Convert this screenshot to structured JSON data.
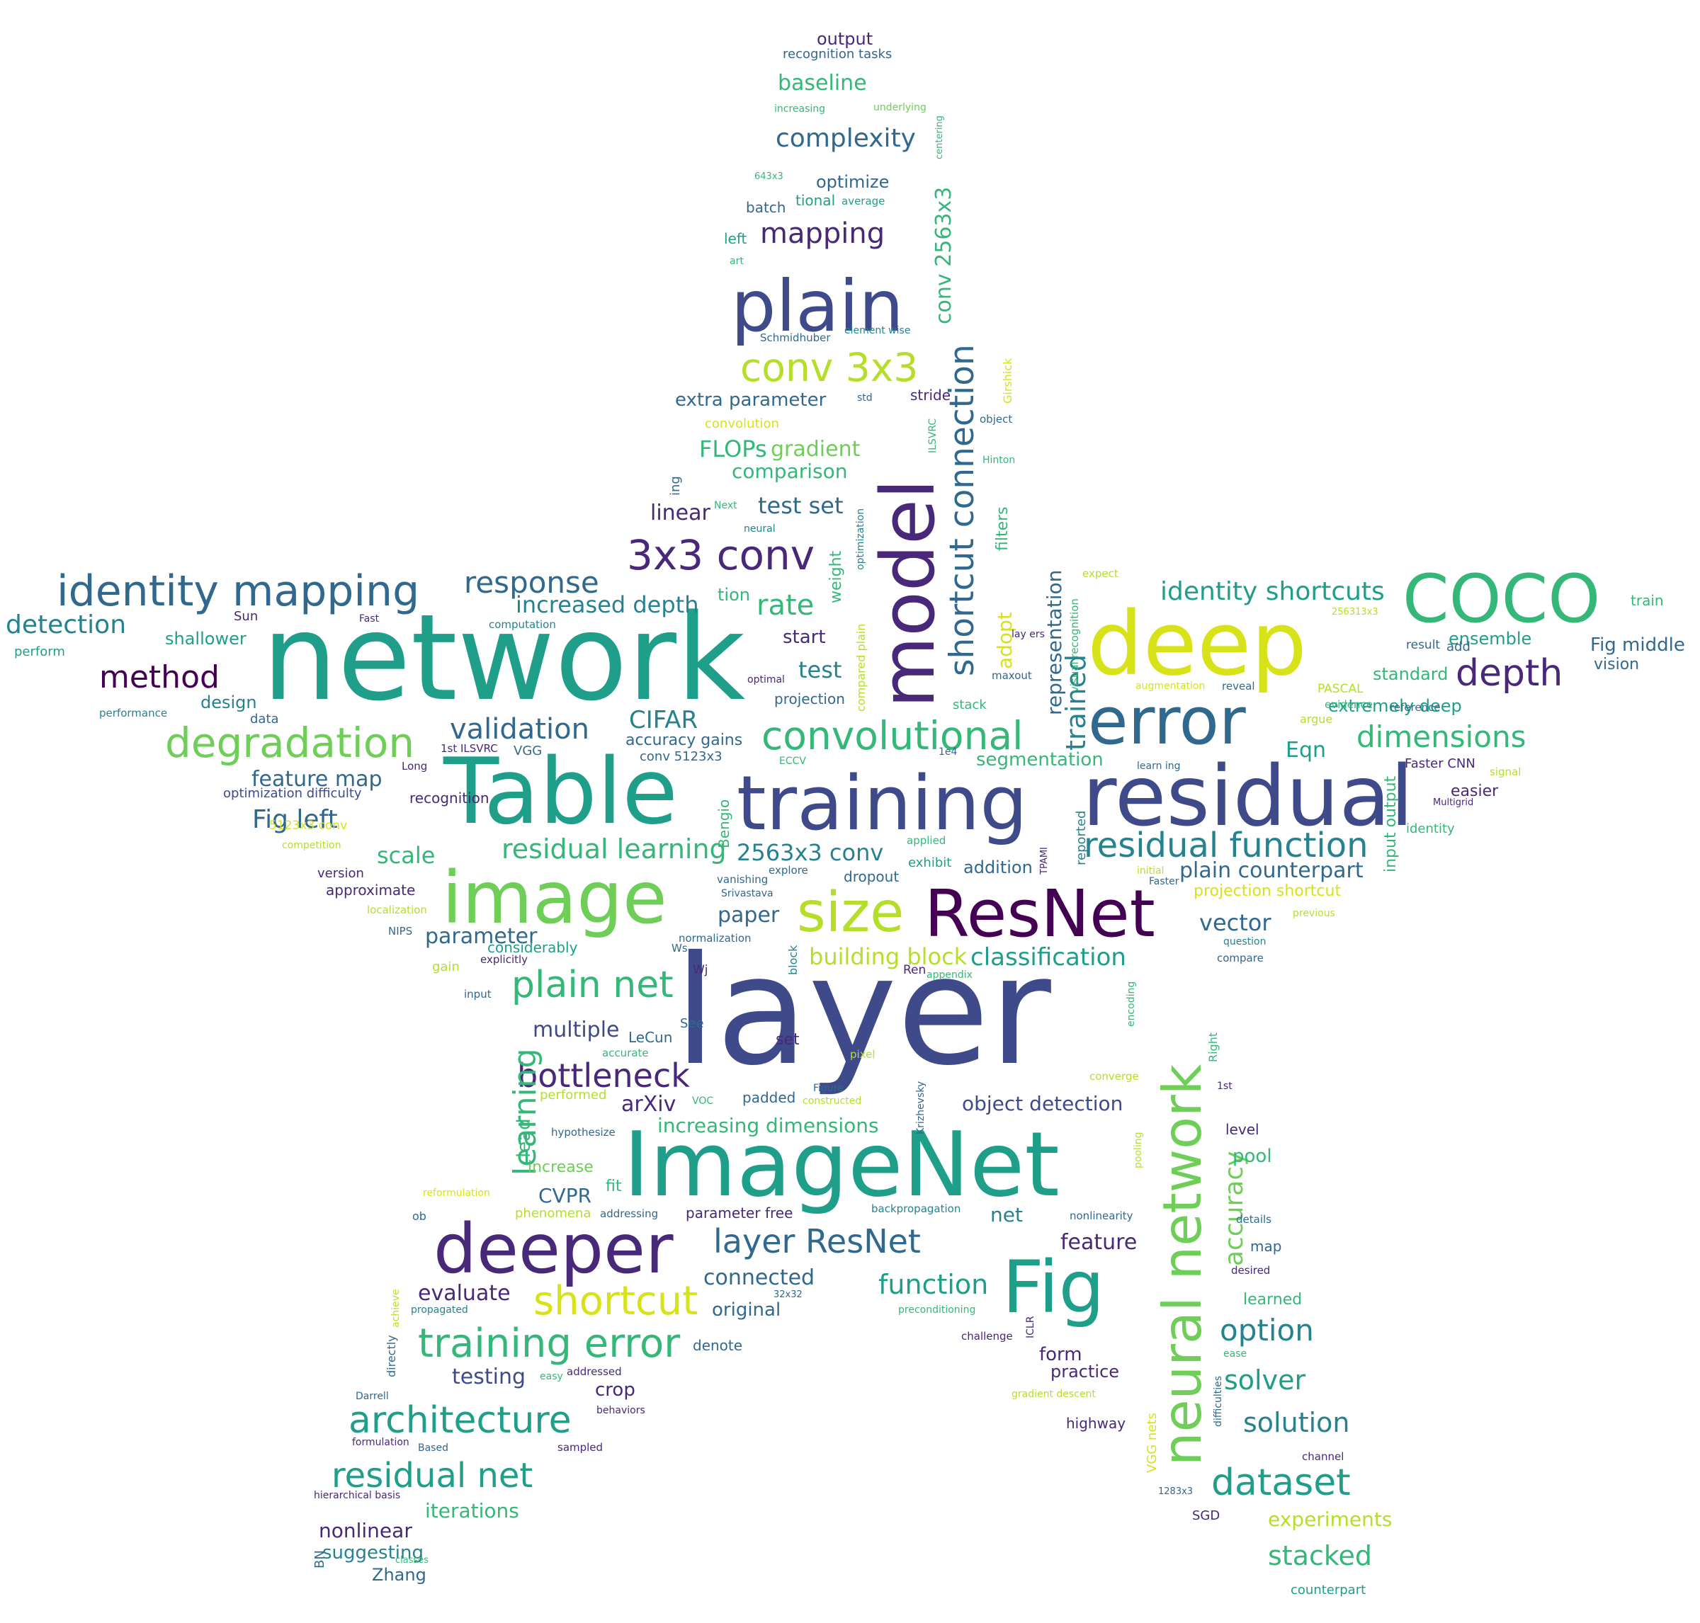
{
  "palette": {
    "purple": "#440154",
    "indigo": "#482878",
    "blue": "#3e4a89",
    "slate": "#31688e",
    "teal": "#26828e",
    "green": "#1f9e89",
    "mint": "#35b779",
    "lime": "#6ece58",
    "yellowgreen": "#b5de2b",
    "yellow": "#d8e219"
  },
  "words": [
    {
      "text": "layer",
      "color": "blue"
    },
    {
      "text": "network",
      "color": "green"
    },
    {
      "text": "ImageNet",
      "color": "green"
    },
    {
      "text": "Table",
      "color": "green"
    },
    {
      "text": "training",
      "color": "blue"
    },
    {
      "text": "deep",
      "color": "yellow"
    },
    {
      "text": "model",
      "color": "indigo"
    },
    {
      "text": "residual",
      "color": "blue"
    },
    {
      "text": "error",
      "color": "slate"
    },
    {
      "text": "image",
      "color": "lime"
    },
    {
      "text": "ResNet",
      "color": "purple"
    },
    {
      "text": "plain",
      "color": "blue"
    },
    {
      "text": "COCO",
      "color": "mint"
    },
    {
      "text": "Fig",
      "color": "green"
    },
    {
      "text": "deeper",
      "color": "indigo"
    },
    {
      "text": "neural network",
      "color": "lime"
    },
    {
      "text": "size",
      "color": "yellowgreen"
    },
    {
      "text": "shortcut connection",
      "color": "slate"
    },
    {
      "text": "3x3 conv",
      "color": "indigo"
    },
    {
      "text": "identity mapping",
      "color": "slate"
    },
    {
      "text": "convolutional",
      "color": "mint"
    },
    {
      "text": "degradation",
      "color": "lime"
    },
    {
      "text": "conv 3x3",
      "color": "yellowgreen"
    },
    {
      "text": "shortcut",
      "color": "yellow"
    },
    {
      "text": "training error",
      "color": "mint"
    },
    {
      "text": "residual function",
      "color": "teal"
    },
    {
      "text": "architecture",
      "color": "green"
    },
    {
      "text": "dataset",
      "color": "green"
    },
    {
      "text": "plain net",
      "color": "mint"
    },
    {
      "text": "bottleneck",
      "color": "indigo"
    },
    {
      "text": "residual net",
      "color": "green"
    },
    {
      "text": "layer ResNet",
      "color": "slate"
    },
    {
      "text": "depth",
      "color": "indigo"
    },
    {
      "text": "method",
      "color": "purple"
    },
    {
      "text": "detection",
      "color": "teal"
    },
    {
      "text": "response",
      "color": "slate"
    },
    {
      "text": "mapping",
      "color": "indigo"
    },
    {
      "text": "complexity",
      "color": "slate"
    },
    {
      "text": "dimensions",
      "color": "mint"
    },
    {
      "text": "identity shortcuts",
      "color": "green"
    },
    {
      "text": "residual learning",
      "color": "mint"
    },
    {
      "text": "validation",
      "color": "slate"
    },
    {
      "text": "learning",
      "color": "mint"
    },
    {
      "text": "function",
      "color": "green"
    },
    {
      "text": "option",
      "color": "teal"
    },
    {
      "text": "solution",
      "color": "teal"
    },
    {
      "text": "solver",
      "color": "green"
    },
    {
      "text": "stacked",
      "color": "mint"
    },
    {
      "text": "increased depth",
      "color": "teal"
    },
    {
      "text": "2563x3 conv",
      "color": "teal"
    },
    {
      "text": "conv 2563x3",
      "color": "mint"
    },
    {
      "text": "plain counterpart",
      "color": "slate"
    },
    {
      "text": "representation",
      "color": "slate"
    },
    {
      "text": "feature map",
      "color": "slate"
    },
    {
      "text": "Fig left",
      "color": "slate"
    },
    {
      "text": "CIFAR",
      "color": "teal"
    },
    {
      "text": "test set",
      "color": "slate"
    },
    {
      "text": "rate",
      "color": "mint"
    },
    {
      "text": "trained",
      "color": "teal"
    },
    {
      "text": "accuracy",
      "color": "lime"
    },
    {
      "text": "FLOPs",
      "color": "mint"
    },
    {
      "text": "gradient",
      "color": "lime"
    },
    {
      "text": "comparison",
      "color": "mint"
    },
    {
      "text": "connected",
      "color": "slate"
    },
    {
      "text": "evaluate",
      "color": "indigo"
    },
    {
      "text": "classification",
      "color": "green"
    },
    {
      "text": "building block",
      "color": "yellowgreen"
    },
    {
      "text": "object detection",
      "color": "blue"
    },
    {
      "text": "increasing dimensions",
      "color": "mint"
    },
    {
      "text": "multiple",
      "color": "blue"
    },
    {
      "text": "paper",
      "color": "slate"
    },
    {
      "text": "parameter",
      "color": "slate"
    },
    {
      "text": "vector",
      "color": "slate"
    },
    {
      "text": "feature",
      "color": "indigo"
    },
    {
      "text": "scale",
      "color": "mint"
    },
    {
      "text": "linear",
      "color": "indigo"
    },
    {
      "text": "test",
      "color": "teal"
    },
    {
      "text": "baseline",
      "color": "mint"
    },
    {
      "text": "output",
      "color": "indigo"
    },
    {
      "text": "extra parameter",
      "color": "slate"
    },
    {
      "text": "optimize",
      "color": "slate"
    },
    {
      "text": "Eqn",
      "color": "green"
    },
    {
      "text": "CVPR",
      "color": "slate"
    },
    {
      "text": "testing",
      "color": "blue"
    },
    {
      "text": "iterations",
      "color": "mint"
    },
    {
      "text": "nonlinear",
      "color": "indigo"
    },
    {
      "text": "suggesting",
      "color": "teal"
    },
    {
      "text": "Zhang",
      "color": "slate"
    },
    {
      "text": "form",
      "color": "indigo"
    },
    {
      "text": "practice",
      "color": "indigo"
    },
    {
      "text": "experiments",
      "color": "yellowgreen"
    },
    {
      "text": "pool",
      "color": "mint"
    },
    {
      "text": "crop",
      "color": "indigo"
    },
    {
      "text": "original",
      "color": "slate"
    },
    {
      "text": "net",
      "color": "teal"
    },
    {
      "text": "addition",
      "color": "slate"
    },
    {
      "text": "segmentation",
      "color": "mint"
    },
    {
      "text": "extremely deep",
      "color": "green"
    },
    {
      "text": "Fig middle",
      "color": "slate"
    },
    {
      "text": "standard",
      "color": "mint"
    },
    {
      "text": "ensemble",
      "color": "green"
    },
    {
      "text": "train",
      "color": "mint"
    },
    {
      "text": "vision",
      "color": "slate"
    },
    {
      "text": "input output",
      "color": "mint"
    },
    {
      "text": "easier",
      "color": "indigo"
    },
    {
      "text": "design",
      "color": "teal"
    },
    {
      "text": "shallower",
      "color": "green"
    },
    {
      "text": "accuracy gains",
      "color": "slate"
    },
    {
      "text": "projection shortcut",
      "color": "yellow"
    },
    {
      "text": "arXiv",
      "color": "indigo"
    },
    {
      "text": "start",
      "color": "indigo"
    },
    {
      "text": "adopt",
      "color": "yellow"
    },
    {
      "text": "filters",
      "color": "mint"
    },
    {
      "text": "learned",
      "color": "mint"
    },
    {
      "text": "Bengio",
      "color": "mint"
    },
    {
      "text": "lead",
      "color": "mint"
    },
    {
      "text": "fit",
      "color": "mint"
    },
    {
      "text": "weight",
      "color": "mint"
    },
    {
      "text": "increase",
      "color": "lime"
    },
    {
      "text": "tion",
      "color": "mint"
    },
    {
      "text": "dropout",
      "color": "slate"
    },
    {
      "text": "set",
      "color": "indigo"
    },
    {
      "text": "level",
      "color": "indigo"
    },
    {
      "text": "map",
      "color": "slate"
    },
    {
      "text": "left",
      "color": "green"
    },
    {
      "text": "batch",
      "color": "slate"
    },
    {
      "text": "tional",
      "color": "green"
    },
    {
      "text": "projection",
      "color": "slate"
    },
    {
      "text": "recognition",
      "color": "indigo"
    },
    {
      "text": "approximate",
      "color": "indigo"
    },
    {
      "text": "version",
      "color": "indigo"
    },
    {
      "text": "parameter free",
      "color": "indigo"
    },
    {
      "text": "Faster CNN",
      "color": "indigo"
    },
    {
      "text": "denote",
      "color": "slate"
    },
    {
      "text": "highway",
      "color": "indigo"
    },
    {
      "text": "considerably",
      "color": "green"
    },
    {
      "text": "optimization difficulty",
      "color": "blue"
    },
    {
      "text": "gain",
      "color": "yellowgreen"
    },
    {
      "text": "LeCun",
      "color": "slate"
    },
    {
      "text": "conv 5123x3",
      "color": "slate"
    },
    {
      "text": "performed",
      "color": "yellowgreen"
    },
    {
      "text": "padded",
      "color": "slate"
    },
    {
      "text": "See",
      "color": "slate"
    },
    {
      "text": "stride",
      "color": "indigo"
    },
    {
      "text": "recognition tasks",
      "color": "slate"
    },
    {
      "text": "increasing",
      "color": "mint"
    },
    {
      "text": "underlying",
      "color": "lime"
    },
    {
      "text": "average",
      "color": "green"
    },
    {
      "text": "643x3",
      "color": "mint"
    },
    {
      "text": "centering",
      "color": "mint"
    },
    {
      "text": "art",
      "color": "mint"
    },
    {
      "text": "Schmidhuber",
      "color": "slate"
    },
    {
      "text": "element wise",
      "color": "teal"
    },
    {
      "text": "convolution",
      "color": "yellow"
    },
    {
      "text": "std",
      "color": "slate"
    },
    {
      "text": "ILSVRC",
      "color": "mint"
    },
    {
      "text": "Girshick",
      "color": "yellow"
    },
    {
      "text": "object",
      "color": "slate"
    },
    {
      "text": "Hinton",
      "color": "mint"
    },
    {
      "text": "ing",
      "color": "slate"
    },
    {
      "text": "Next",
      "color": "mint"
    },
    {
      "text": "neural",
      "color": "teal"
    },
    {
      "text": "optimization",
      "color": "teal"
    },
    {
      "text": "compared plain",
      "color": "yellowgreen"
    },
    {
      "text": "computation",
      "color": "teal"
    },
    {
      "text": "Sun",
      "color": "indigo"
    },
    {
      "text": "Fast",
      "color": "indigo"
    },
    {
      "text": "perform",
      "color": "green"
    },
    {
      "text": "performance",
      "color": "teal"
    },
    {
      "text": "data",
      "color": "slate"
    },
    {
      "text": "1st ILSVRC",
      "color": "indigo"
    },
    {
      "text": "VGG",
      "color": "slate"
    },
    {
      "text": "Long",
      "color": "indigo"
    },
    {
      "text": "optimal",
      "color": "indigo"
    },
    {
      "text": "ECCV",
      "color": "mint"
    },
    {
      "text": "1e4",
      "color": "slate"
    },
    {
      "text": "stack",
      "color": "mint"
    },
    {
      "text": "maxout",
      "color": "slate"
    },
    {
      "text": "visual recognition",
      "color": "mint"
    },
    {
      "text": "lay ers",
      "color": "indigo"
    },
    {
      "text": "expect",
      "color": "yellowgreen"
    },
    {
      "text": "256313x3",
      "color": "yellowgreen"
    },
    {
      "text": "augmentation",
      "color": "yellow"
    },
    {
      "text": "reveal",
      "color": "slate"
    },
    {
      "text": "PASCAL",
      "color": "yellowgreen"
    },
    {
      "text": "evidence",
      "color": "mint"
    },
    {
      "text": "argue",
      "color": "yellowgreen"
    },
    {
      "text": "reference",
      "color": "slate"
    },
    {
      "text": "result",
      "color": "slate"
    },
    {
      "text": "add",
      "color": "slate"
    },
    {
      "text": "learn ing",
      "color": "slate"
    },
    {
      "text": "signal",
      "color": "yellowgreen"
    },
    {
      "text": "Multigrid",
      "color": "indigo"
    },
    {
      "text": "identity",
      "color": "mint"
    },
    {
      "text": "competition",
      "color": "yellowgreen"
    },
    {
      "text": "localization",
      "color": "yellowgreen"
    },
    {
      "text": "NIPS",
      "color": "slate"
    },
    {
      "text": "5123x3 conv",
      "color": "yellow"
    },
    {
      "text": "vanishing",
      "color": "slate"
    },
    {
      "text": "Srivastava",
      "color": "slate"
    },
    {
      "text": "explore",
      "color": "slate"
    },
    {
      "text": "applied",
      "color": "mint"
    },
    {
      "text": "exhibit",
      "color": "green"
    },
    {
      "text": "TPAMI",
      "color": "indigo"
    },
    {
      "text": "reported",
      "color": "teal"
    },
    {
      "text": "initial",
      "color": "yellowgreen"
    },
    {
      "text": "Faster",
      "color": "slate"
    },
    {
      "text": "previous",
      "color": "yellowgreen"
    },
    {
      "text": "question",
      "color": "teal"
    },
    {
      "text": "compare",
      "color": "slate"
    },
    {
      "text": "normalization",
      "color": "slate"
    },
    {
      "text": "explicitly",
      "color": "indigo"
    },
    {
      "text": "Ws",
      "color": "slate"
    },
    {
      "text": "Wj",
      "color": "indigo"
    },
    {
      "text": "block",
      "color": "teal"
    },
    {
      "text": "Ren",
      "color": "indigo"
    },
    {
      "text": "appendix",
      "color": "mint"
    },
    {
      "text": "input",
      "color": "slate"
    },
    {
      "text": "accurate",
      "color": "mint"
    },
    {
      "text": "pixel",
      "color": "yellowgreen"
    },
    {
      "text": "Figure",
      "color": "slate"
    },
    {
      "text": "constructed",
      "color": "yellowgreen"
    },
    {
      "text": "VOC",
      "color": "mint"
    },
    {
      "text": "Krizhevsky",
      "color": "slate"
    },
    {
      "text": "encoding",
      "color": "mint"
    },
    {
      "text": "converge",
      "color": "yellowgreen"
    },
    {
      "text": "Right",
      "color": "mint"
    },
    {
      "text": "1st",
      "color": "indigo"
    },
    {
      "text": "hypothesize",
      "color": "slate"
    },
    {
      "text": "pooling",
      "color": "yellowgreen"
    },
    {
      "text": "reformulation",
      "color": "yellow"
    },
    {
      "text": "ob",
      "color": "slate"
    },
    {
      "text": "phenomena",
      "color": "yellowgreen"
    },
    {
      "text": "addressing",
      "color": "slate"
    },
    {
      "text": "backpropagation",
      "color": "teal"
    },
    {
      "text": "nonlinearity",
      "color": "slate"
    },
    {
      "text": "details",
      "color": "slate"
    },
    {
      "text": "desired",
      "color": "indigo"
    },
    {
      "text": "32x32",
      "color": "slate"
    },
    {
      "text": "propagated",
      "color": "teal"
    },
    {
      "text": "achieve",
      "color": "yellowgreen"
    },
    {
      "text": "preconditioning",
      "color": "mint"
    },
    {
      "text": "challenge",
      "color": "indigo"
    },
    {
      "text": "ICLR",
      "color": "indigo"
    },
    {
      "text": "ease",
      "color": "mint"
    },
    {
      "text": "directly",
      "color": "slate"
    },
    {
      "text": "easy",
      "color": "mint"
    },
    {
      "text": "addressed",
      "color": "indigo"
    },
    {
      "text": "Darrell",
      "color": "slate"
    },
    {
      "text": "behaviors",
      "color": "indigo"
    },
    {
      "text": "gradient descent",
      "color": "yellowgreen"
    },
    {
      "text": "VGG nets",
      "color": "yellow"
    },
    {
      "text": "difficulties",
      "color": "slate"
    },
    {
      "text": "formulation",
      "color": "indigo"
    },
    {
      "text": "Based",
      "color": "slate"
    },
    {
      "text": "sampled",
      "color": "indigo"
    },
    {
      "text": "channel",
      "color": "indigo"
    },
    {
      "text": "hierarchical basis",
      "color": "indigo"
    },
    {
      "text": "1283x3",
      "color": "slate"
    },
    {
      "text": "SGD",
      "color": "indigo"
    },
    {
      "text": "BN",
      "color": "slate"
    },
    {
      "text": "classes",
      "color": "mint"
    },
    {
      "text": "counterpart",
      "color": "green"
    }
  ]
}
